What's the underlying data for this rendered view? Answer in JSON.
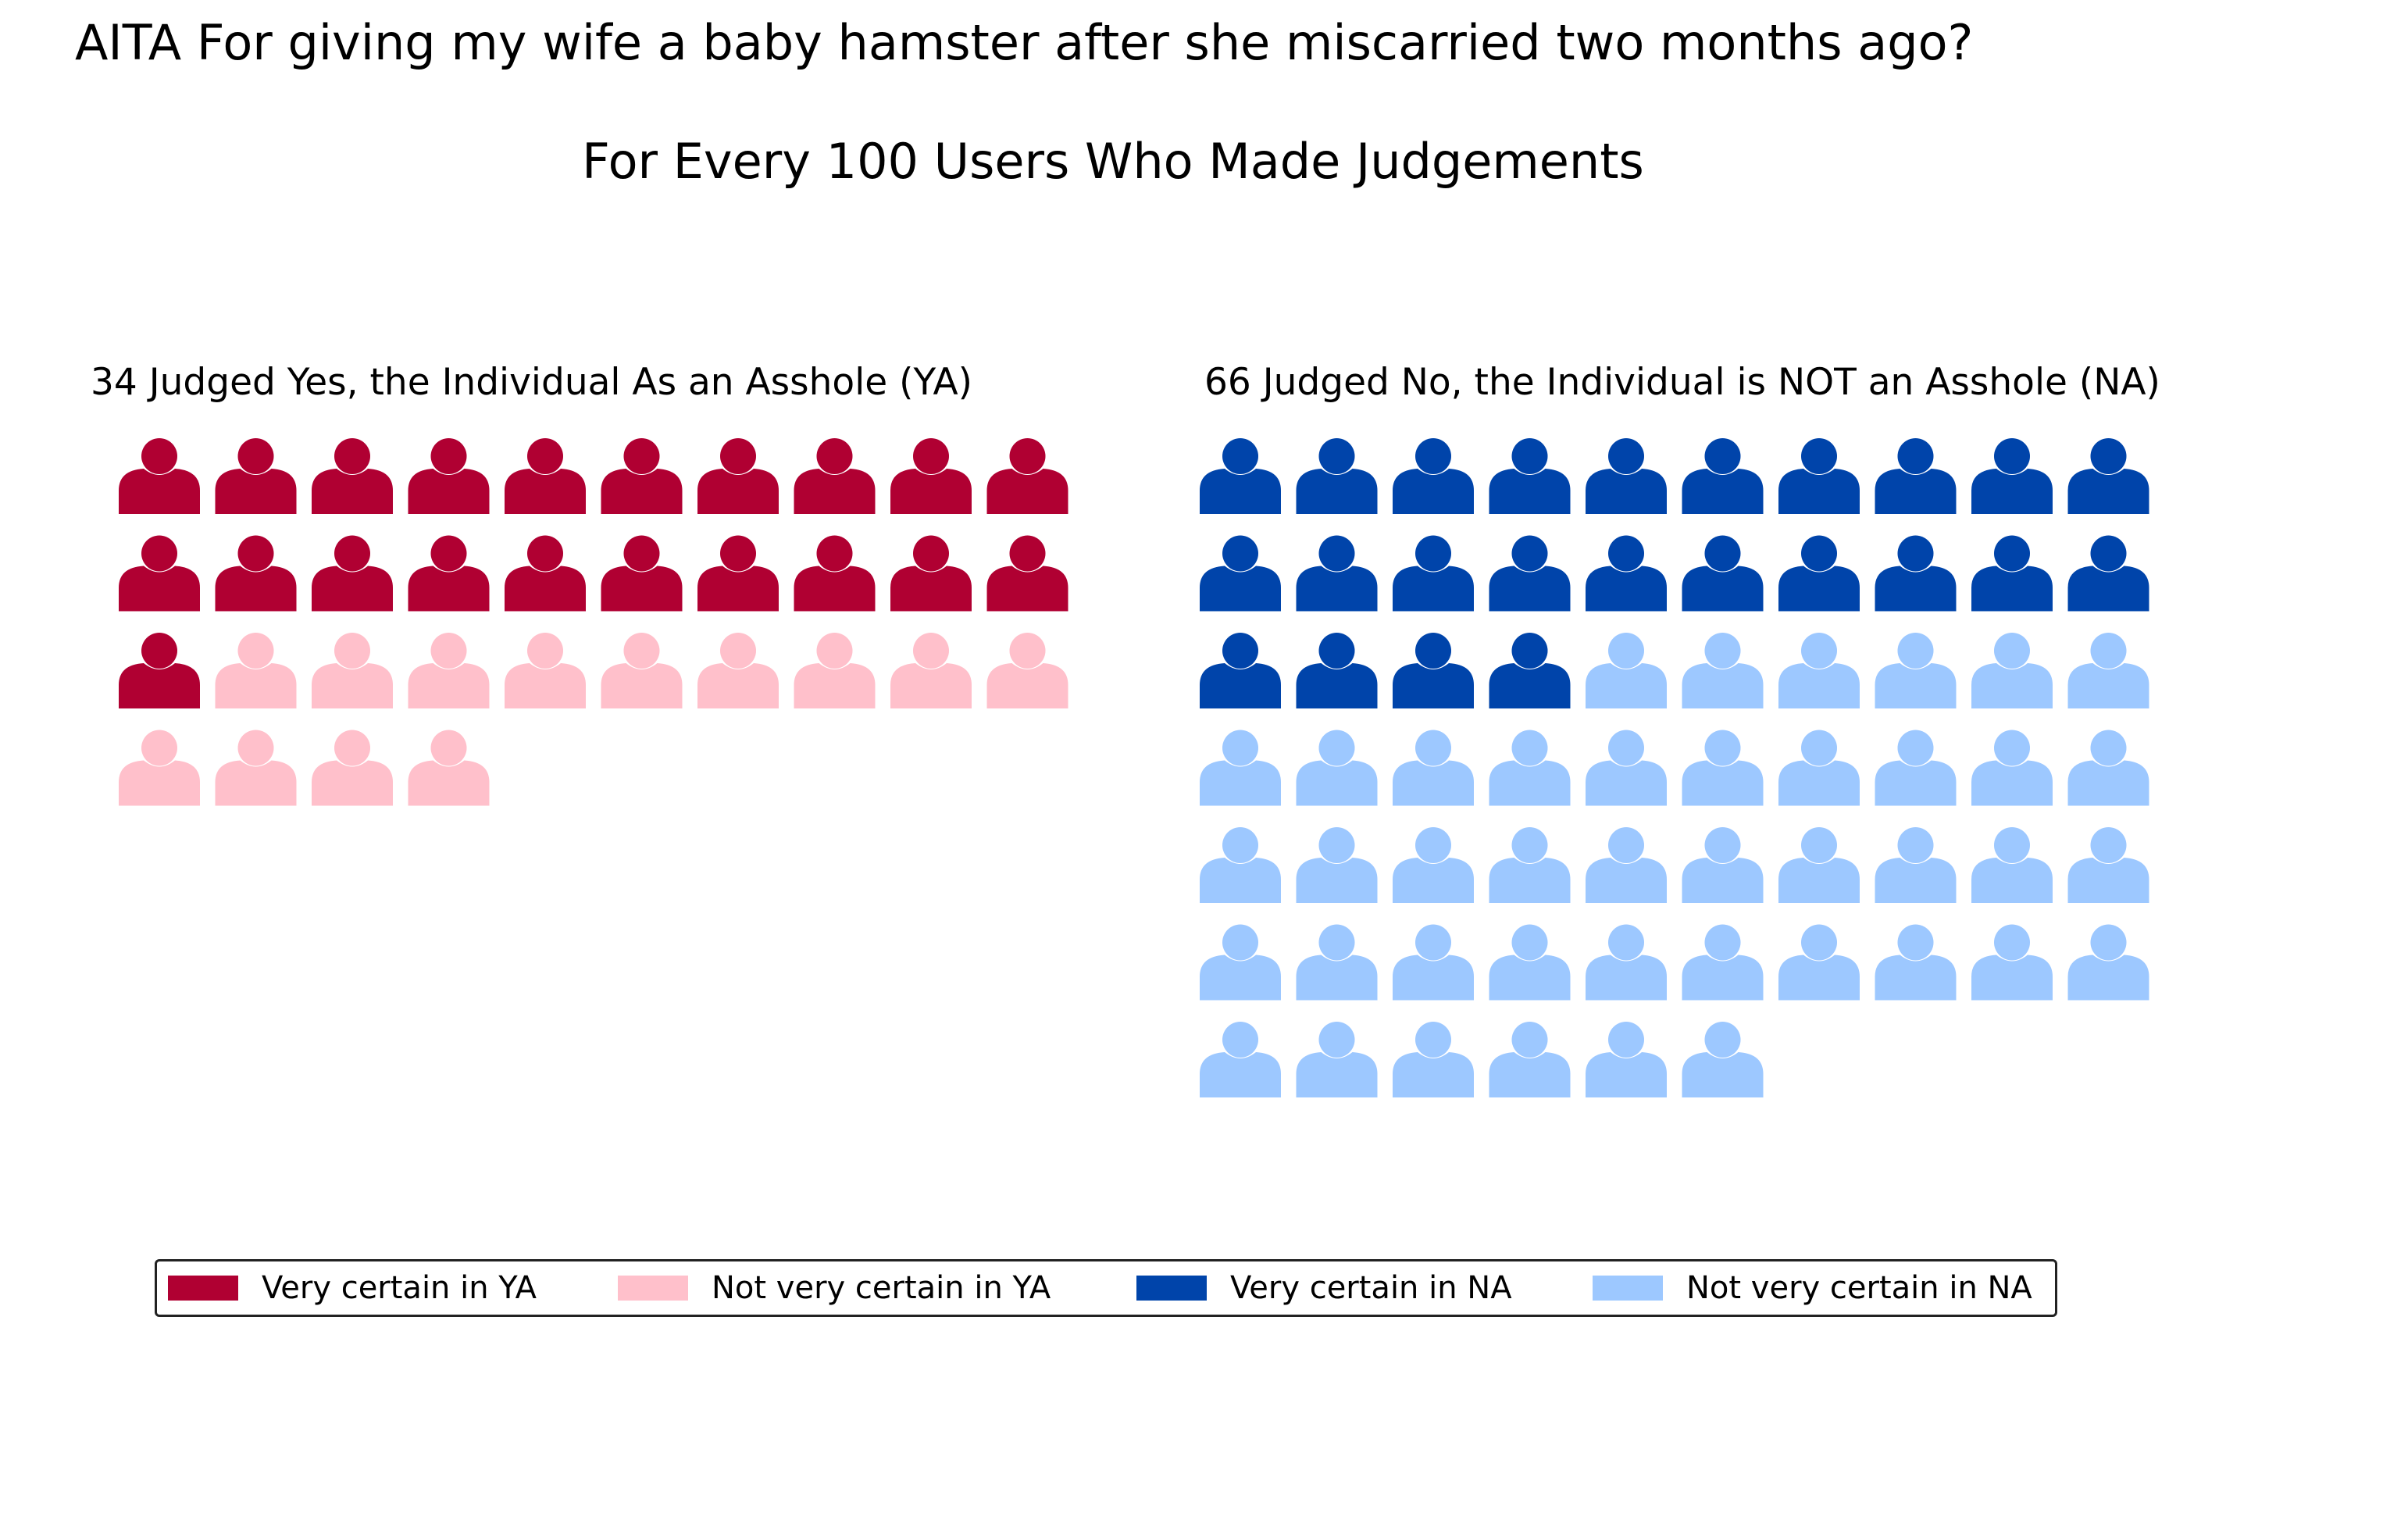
{
  "chart_data": {
    "type": "pictograph",
    "title": "AITA For giving my wife a baby hamster after she miscarried two months ago?",
    "subtitle": "For Every 100 Users Who Made Judgements",
    "icon": "person-icon",
    "icons_per_row": 10,
    "panels": [
      {
        "label": "34 Judged Yes, the Individual As an Asshole (YA)",
        "total": 34,
        "segments": [
          {
            "name": "Very certain in YA",
            "count": 21,
            "color": "#b00032"
          },
          {
            "name": "Not very certain in YA",
            "count": 13,
            "color": "#ffc0cb"
          }
        ]
      },
      {
        "label": "66 Judged No, the Individual is NOT an Asshole (NA)",
        "total": 66,
        "segments": [
          {
            "name": "Very certain in NA",
            "count": 24,
            "color": "#0044aa"
          },
          {
            "name": "Not very certain in NA",
            "count": 42,
            "color": "#9dc8ff"
          }
        ]
      }
    ],
    "legend": {
      "placement": "bottom",
      "entries": [
        {
          "label": "Very certain in YA",
          "color": "#b00032"
        },
        {
          "label": "Not very certain in YA",
          "color": "#ffc0cb"
        },
        {
          "label": "Very certain in NA",
          "color": "#0044aa"
        },
        {
          "label": "Not very certain in NA",
          "color": "#9dc8ff"
        }
      ]
    }
  }
}
